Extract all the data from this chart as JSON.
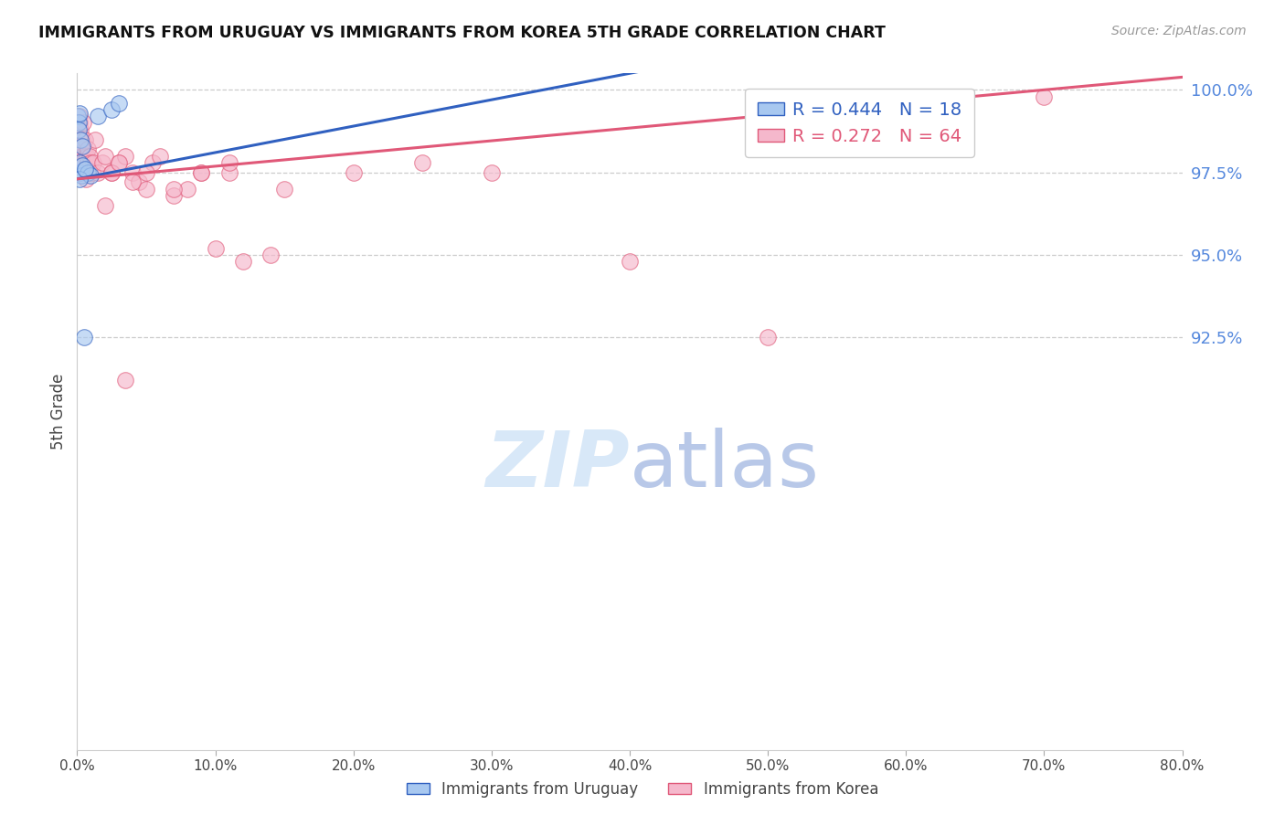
{
  "title": "IMMIGRANTS FROM URUGUAY VS IMMIGRANTS FROM KOREA 5TH GRADE CORRELATION CHART",
  "source": "Source: ZipAtlas.com",
  "ylabel": "5th Grade",
  "x_min": 0.0,
  "x_max": 80.0,
  "y_min": 80.0,
  "y_max": 100.5,
  "y_ticks": [
    92.5,
    95.0,
    97.5,
    100.0
  ],
  "x_ticks": [
    0.0,
    10.0,
    20.0,
    30.0,
    40.0,
    50.0,
    60.0,
    70.0,
    80.0
  ],
  "color_uruguay": "#a8c8f0",
  "color_korea": "#f5b8cc",
  "color_line_uruguay": "#3060c0",
  "color_line_korea": "#e05878",
  "color_right_axis": "#5588dd",
  "watermark_color": "#d8e8f8",
  "legend_text_uruguay": "R = 0.444   N = 18",
  "legend_text_korea": "R = 0.272   N = 64",
  "bottom_label_uruguay": "Immigrants from Uruguay",
  "bottom_label_korea": "Immigrants from Korea",
  "uruguay_x": [
    0.05,
    0.1,
    0.12,
    0.15,
    0.18,
    0.2,
    0.25,
    0.3,
    0.35,
    0.4,
    0.5,
    0.8,
    1.0,
    1.5,
    2.5,
    3.0,
    0.15,
    0.6
  ],
  "uruguay_y": [
    99.2,
    99.0,
    98.8,
    97.5,
    99.3,
    97.8,
    98.5,
    97.4,
    98.3,
    97.7,
    92.5,
    97.5,
    97.4,
    99.2,
    99.4,
    99.6,
    97.3,
    97.6
  ],
  "korea_x": [
    0.05,
    0.08,
    0.1,
    0.12,
    0.15,
    0.18,
    0.2,
    0.22,
    0.25,
    0.28,
    0.3,
    0.32,
    0.35,
    0.38,
    0.4,
    0.42,
    0.45,
    0.5,
    0.55,
    0.6,
    0.65,
    0.7,
    0.75,
    0.8,
    0.85,
    0.9,
    1.0,
    1.1,
    1.2,
    1.3,
    1.5,
    1.8,
    2.0,
    2.5,
    3.0,
    3.5,
    4.0,
    4.5,
    5.0,
    5.5,
    6.0,
    7.0,
    8.0,
    9.0,
    10.0,
    11.0,
    12.0,
    14.0,
    2.0,
    2.5,
    3.0,
    4.0,
    5.0,
    7.0,
    9.0,
    11.0,
    15.0,
    20.0,
    25.0,
    30.0,
    40.0,
    50.0,
    70.0,
    3.5
  ],
  "korea_y": [
    97.8,
    98.5,
    98.8,
    97.5,
    98.0,
    99.2,
    99.0,
    98.8,
    98.5,
    98.0,
    97.5,
    98.2,
    97.8,
    98.5,
    98.0,
    97.5,
    99.0,
    97.8,
    98.0,
    98.5,
    97.3,
    98.0,
    97.8,
    98.2,
    97.5,
    98.0,
    97.8,
    97.5,
    97.8,
    98.5,
    97.5,
    97.8,
    96.5,
    97.5,
    97.8,
    98.0,
    97.5,
    97.2,
    97.0,
    97.8,
    98.0,
    96.8,
    97.0,
    97.5,
    95.2,
    97.5,
    94.8,
    95.0,
    98.0,
    97.5,
    97.8,
    97.2,
    97.5,
    97.0,
    97.5,
    97.8,
    97.0,
    97.5,
    97.8,
    97.5,
    94.8,
    92.5,
    99.8,
    91.2
  ]
}
